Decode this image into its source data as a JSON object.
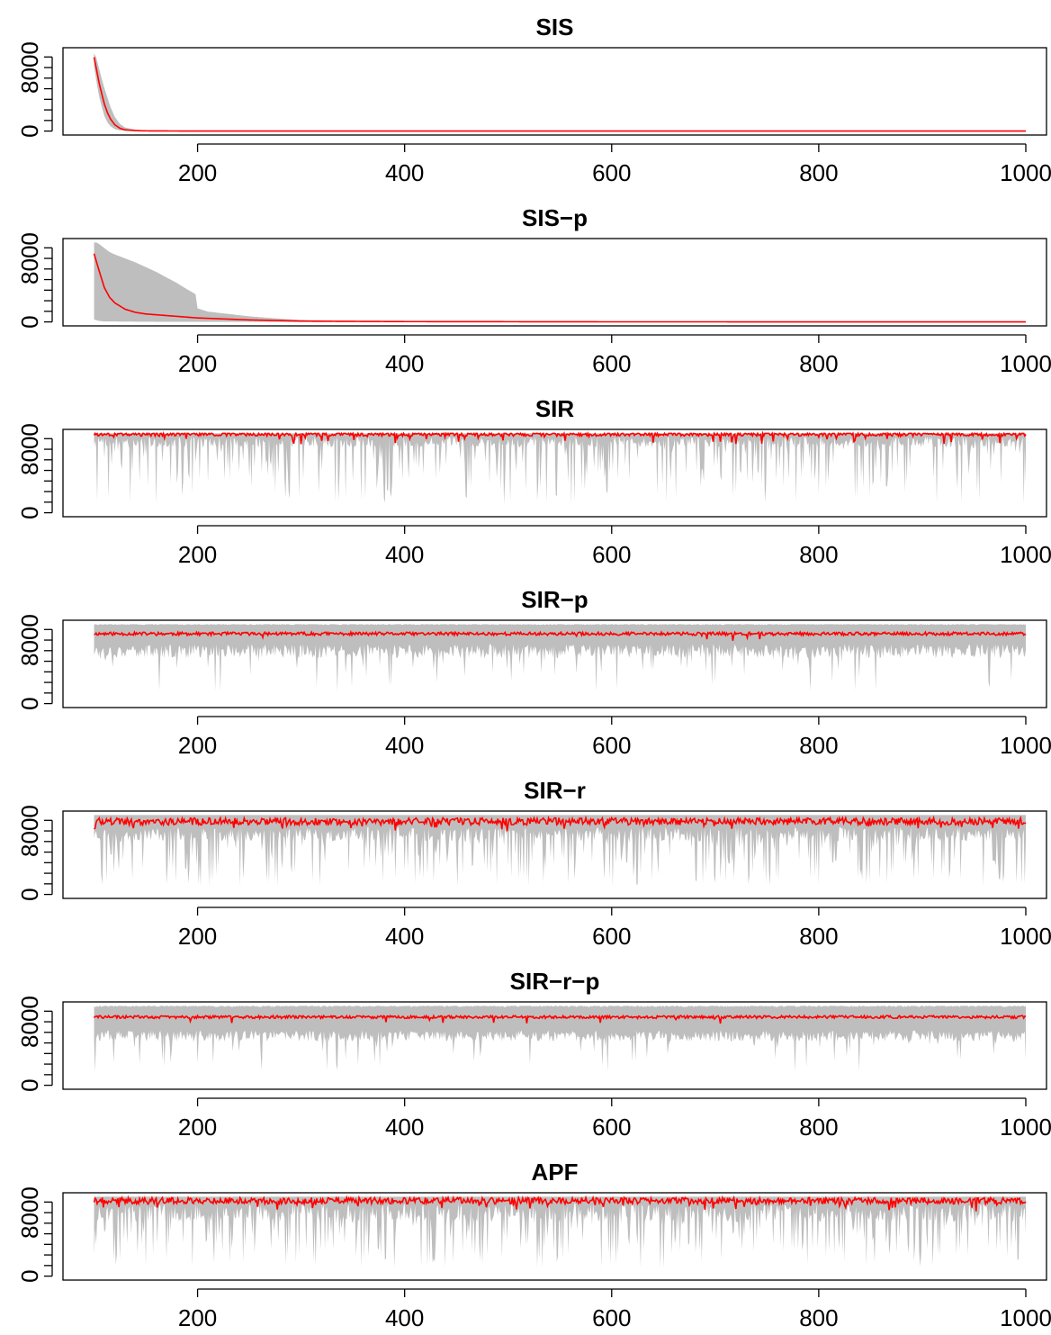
{
  "chart_data": [
    {
      "type": "area",
      "title": "SIS",
      "xlabel": "",
      "ylabel": "",
      "xlim": [
        70,
        1020
      ],
      "ylim": [
        -500,
        10500
      ],
      "x_ticks": [
        200,
        400,
        600,
        800,
        1000
      ],
      "y_ticks": [
        0,
        8000
      ],
      "y_tick_labels": [
        "0",
        "8000"
      ],
      "y_minor_ticks": [
        0,
        1333,
        2667,
        4000,
        5333,
        6667,
        8000,
        9333
      ],
      "grid": false,
      "band_color": "#bebebe",
      "line_color": "#ff0000",
      "series": [
        {
          "kind": "mean",
          "x": [
            100,
            102,
            105,
            108,
            110,
            113,
            116,
            120,
            125,
            130,
            140,
            150,
            175,
            200,
            300,
            500,
            700,
            1000
          ],
          "values": [
            9300,
            8000,
            6000,
            4400,
            3400,
            2300,
            1500,
            800,
            350,
            150,
            60,
            25,
            10,
            5,
            3,
            2,
            1,
            1
          ]
        },
        {
          "kind": "upper",
          "x": [
            100,
            102,
            105,
            108,
            110,
            113,
            116,
            120,
            125,
            130,
            140,
            150,
            175,
            200,
            300,
            500,
            700,
            1000
          ],
          "values": [
            9800,
            9300,
            7800,
            6300,
            5400,
            4200,
            3000,
            1800,
            900,
            450,
            180,
            80,
            30,
            15,
            8,
            5,
            3,
            2
          ]
        },
        {
          "kind": "lower",
          "x": [
            100,
            102,
            105,
            108,
            110,
            113,
            116,
            120,
            125,
            130,
            140,
            150,
            175,
            200,
            300,
            500,
            700,
            1000
          ],
          "values": [
            8200,
            6500,
            4300,
            2800,
            1900,
            1100,
            600,
            250,
            80,
            30,
            10,
            5,
            2,
            1,
            1,
            1,
            1,
            1
          ]
        }
      ]
    },
    {
      "type": "area",
      "title": "SIS−p",
      "xlabel": "",
      "ylabel": "",
      "xlim": [
        70,
        1020
      ],
      "ylim": [
        -500,
        10500
      ],
      "x_ticks": [
        200,
        400,
        600,
        800,
        1000
      ],
      "y_ticks": [
        0,
        8000
      ],
      "y_tick_labels": [
        "0",
        "8000"
      ],
      "y_minor_ticks": [
        0,
        1333,
        2667,
        4000,
        5333,
        6667,
        8000,
        9333
      ],
      "grid": false,
      "band_color": "#bebebe",
      "line_color": "#ff0000",
      "series": [
        {
          "kind": "mean",
          "x": [
            100,
            105,
            110,
            115,
            120,
            130,
            140,
            150,
            170,
            200,
            250,
            300,
            400,
            600,
            1000
          ],
          "values": [
            8600,
            6400,
            4300,
            3100,
            2400,
            1600,
            1200,
            1000,
            800,
            500,
            250,
            100,
            40,
            10,
            5
          ]
        },
        {
          "kind": "upper",
          "x": [
            100,
            105,
            110,
            115,
            120,
            130,
            140,
            150,
            160,
            170,
            180,
            190,
            198,
            200,
            210,
            230,
            250,
            275,
            300,
            350,
            400,
            600,
            1000
          ],
          "values": [
            10200,
            9800,
            9300,
            8800,
            8500,
            8000,
            7500,
            6900,
            6300,
            5600,
            4900,
            4100,
            3500,
            1700,
            1300,
            1000,
            700,
            450,
            250,
            120,
            50,
            15,
            5
          ]
        },
        {
          "kind": "lower",
          "x": [
            100,
            105,
            110,
            150,
            200,
            300,
            1000
          ],
          "values": [
            300,
            120,
            60,
            20,
            5,
            2,
            1
          ]
        }
      ]
    },
    {
      "type": "area",
      "title": "SIR",
      "xlabel": "",
      "ylabel": "",
      "xlim": [
        70,
        1020
      ],
      "ylim": [
        -500,
        10500
      ],
      "x_ticks": [
        200,
        400,
        600,
        800,
        1000
      ],
      "y_ticks": [
        0,
        8000
      ],
      "y_tick_labels": [
        "0",
        "8000"
      ],
      "y_minor_ticks": [
        0,
        1333,
        2667,
        4000,
        5333,
        6667,
        8000,
        9333
      ],
      "grid": false,
      "band_color": "#bebebe",
      "line_color": "#ff0000",
      "series": [
        {
          "kind": "mean",
          "x": [
            100,
            1000
          ],
          "values": [
            9900,
            9900
          ],
          "fluctuation": {
            "amplitude": 250,
            "dip_probability": 0.05,
            "dip_depth": 1100,
            "seed": 3
          }
        },
        {
          "kind": "upper",
          "x": [
            100,
            1000
          ],
          "values": [
            10000,
            10000
          ]
        },
        {
          "kind": "lower",
          "x": [
            100,
            1000
          ],
          "values": [
            8900,
            8900
          ],
          "fluctuation": {
            "amplitude": 700,
            "spike_probability": 0.3,
            "spike_min": 1000,
            "seed": 7
          }
        }
      ]
    },
    {
      "type": "area",
      "title": "SIR−p",
      "xlabel": "",
      "ylabel": "",
      "xlim": [
        70,
        1020
      ],
      "ylim": [
        -500,
        10500
      ],
      "x_ticks": [
        200,
        400,
        600,
        800,
        1000
      ],
      "y_ticks": [
        0,
        8000
      ],
      "y_tick_labels": [
        "0",
        "8000"
      ],
      "y_minor_ticks": [
        0,
        1333,
        2667,
        4000,
        5333,
        6667,
        8000,
        9333
      ],
      "grid": false,
      "band_color": "#bebebe",
      "line_color": "#ff0000",
      "series": [
        {
          "kind": "mean",
          "x": [
            100,
            1000
          ],
          "values": [
            8800,
            8800
          ],
          "fluctuation": {
            "amplitude": 200,
            "dip_probability": 0.02,
            "dip_depth": 700,
            "seed": 11
          }
        },
        {
          "kind": "upper",
          "x": [
            100,
            1000
          ],
          "values": [
            10000,
            10000
          ],
          "fluctuation": {
            "amplitude": 100,
            "seed": 13
          }
        },
        {
          "kind": "lower",
          "x": [
            100,
            1000
          ],
          "values": [
            6600,
            6600
          ],
          "fluctuation": {
            "amplitude": 900,
            "spike_probability": 0.08,
            "spike_min": 1500,
            "seed": 17
          }
        }
      ]
    },
    {
      "type": "area",
      "title": "SIR−r",
      "xlabel": "",
      "ylabel": "",
      "xlim": [
        70,
        1020
      ],
      "ylim": [
        -500,
        10500
      ],
      "x_ticks": [
        200,
        400,
        600,
        800,
        1000
      ],
      "y_ticks": [
        0,
        8000
      ],
      "y_tick_labels": [
        "0",
        "8000"
      ],
      "y_minor_ticks": [
        0,
        1333,
        2667,
        4000,
        5333,
        6667,
        8000,
        9333
      ],
      "grid": false,
      "band_color": "#bebebe",
      "line_color": "#ff0000",
      "series": [
        {
          "kind": "mean",
          "x": [
            100,
            1000
          ],
          "values": [
            9200,
            9200
          ],
          "fluctuation": {
            "amplitude": 450,
            "dip_probability": 0.06,
            "dip_depth": 900,
            "seed": 19
          }
        },
        {
          "kind": "upper",
          "x": [
            100,
            1000
          ],
          "values": [
            10000,
            10000
          ]
        },
        {
          "kind": "lower",
          "x": [
            100,
            1000
          ],
          "values": [
            7600,
            7600
          ],
          "fluctuation": {
            "amplitude": 900,
            "spike_probability": 0.3,
            "spike_min": 1000,
            "seed": 23
          }
        }
      ]
    },
    {
      "type": "area",
      "title": "SIR−r−p",
      "xlabel": "",
      "ylabel": "",
      "xlim": [
        70,
        1020
      ],
      "ylim": [
        -500,
        10500
      ],
      "x_ticks": [
        200,
        400,
        600,
        800,
        1000
      ],
      "y_ticks": [
        0,
        8000
      ],
      "y_tick_labels": [
        "0",
        "8000"
      ],
      "y_minor_ticks": [
        0,
        1333,
        2667,
        4000,
        5333,
        6667,
        8000,
        9333
      ],
      "grid": false,
      "band_color": "#bebebe",
      "line_color": "#ff0000",
      "series": [
        {
          "kind": "mean",
          "x": [
            100,
            1000
          ],
          "values": [
            8600,
            8600
          ],
          "fluctuation": {
            "amplitude": 180,
            "dip_probability": 0.02,
            "dip_depth": 700,
            "seed": 29
          }
        },
        {
          "kind": "upper",
          "x": [
            100,
            1000
          ],
          "values": [
            10000,
            10000
          ],
          "fluctuation": {
            "amplitude": 150,
            "seed": 31
          }
        },
        {
          "kind": "lower",
          "x": [
            100,
            1000
          ],
          "values": [
            6200,
            6200
          ],
          "fluctuation": {
            "amplitude": 700,
            "spike_probability": 0.07,
            "spike_min": 1500,
            "seed": 37
          }
        }
      ]
    },
    {
      "type": "area",
      "title": "APF",
      "xlabel": "",
      "ylabel": "",
      "xlim": [
        70,
        1020
      ],
      "ylim": [
        -500,
        10500
      ],
      "x_ticks": [
        200,
        400,
        600,
        800,
        1000
      ],
      "y_ticks": [
        0,
        8000
      ],
      "y_tick_labels": [
        "0",
        "8000"
      ],
      "y_minor_ticks": [
        0,
        1333,
        2667,
        4000,
        5333,
        6667,
        8000,
        9333
      ],
      "grid": false,
      "band_color": "#bebebe",
      "line_color": "#ff0000",
      "series": [
        {
          "kind": "mean",
          "x": [
            100,
            1000
          ],
          "values": [
            9500,
            9500
          ],
          "fluctuation": {
            "amplitude": 400,
            "dip_probability": 0.07,
            "dip_depth": 1100,
            "seed": 41
          }
        },
        {
          "kind": "upper",
          "x": [
            100,
            1000
          ],
          "values": [
            10000,
            10000
          ]
        },
        {
          "kind": "lower",
          "x": [
            100,
            1000
          ],
          "values": [
            8000,
            8000
          ],
          "fluctuation": {
            "amplitude": 1200,
            "spike_probability": 0.3,
            "spike_min": 1000,
            "seed": 43
          }
        }
      ]
    }
  ]
}
